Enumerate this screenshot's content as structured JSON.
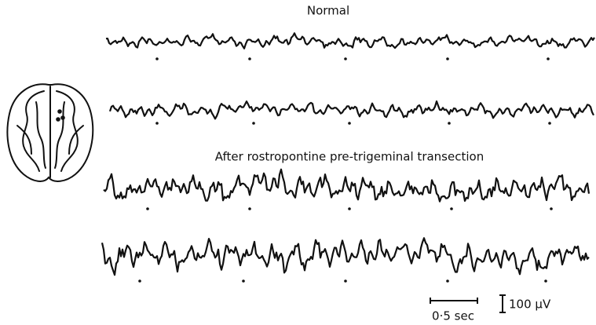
{
  "headings": {
    "normal": "Normal",
    "after": "After rostropontine pre-trigeminal transection"
  },
  "scale": {
    "time": "0·5 sec",
    "voltage": "100 μV"
  }
}
